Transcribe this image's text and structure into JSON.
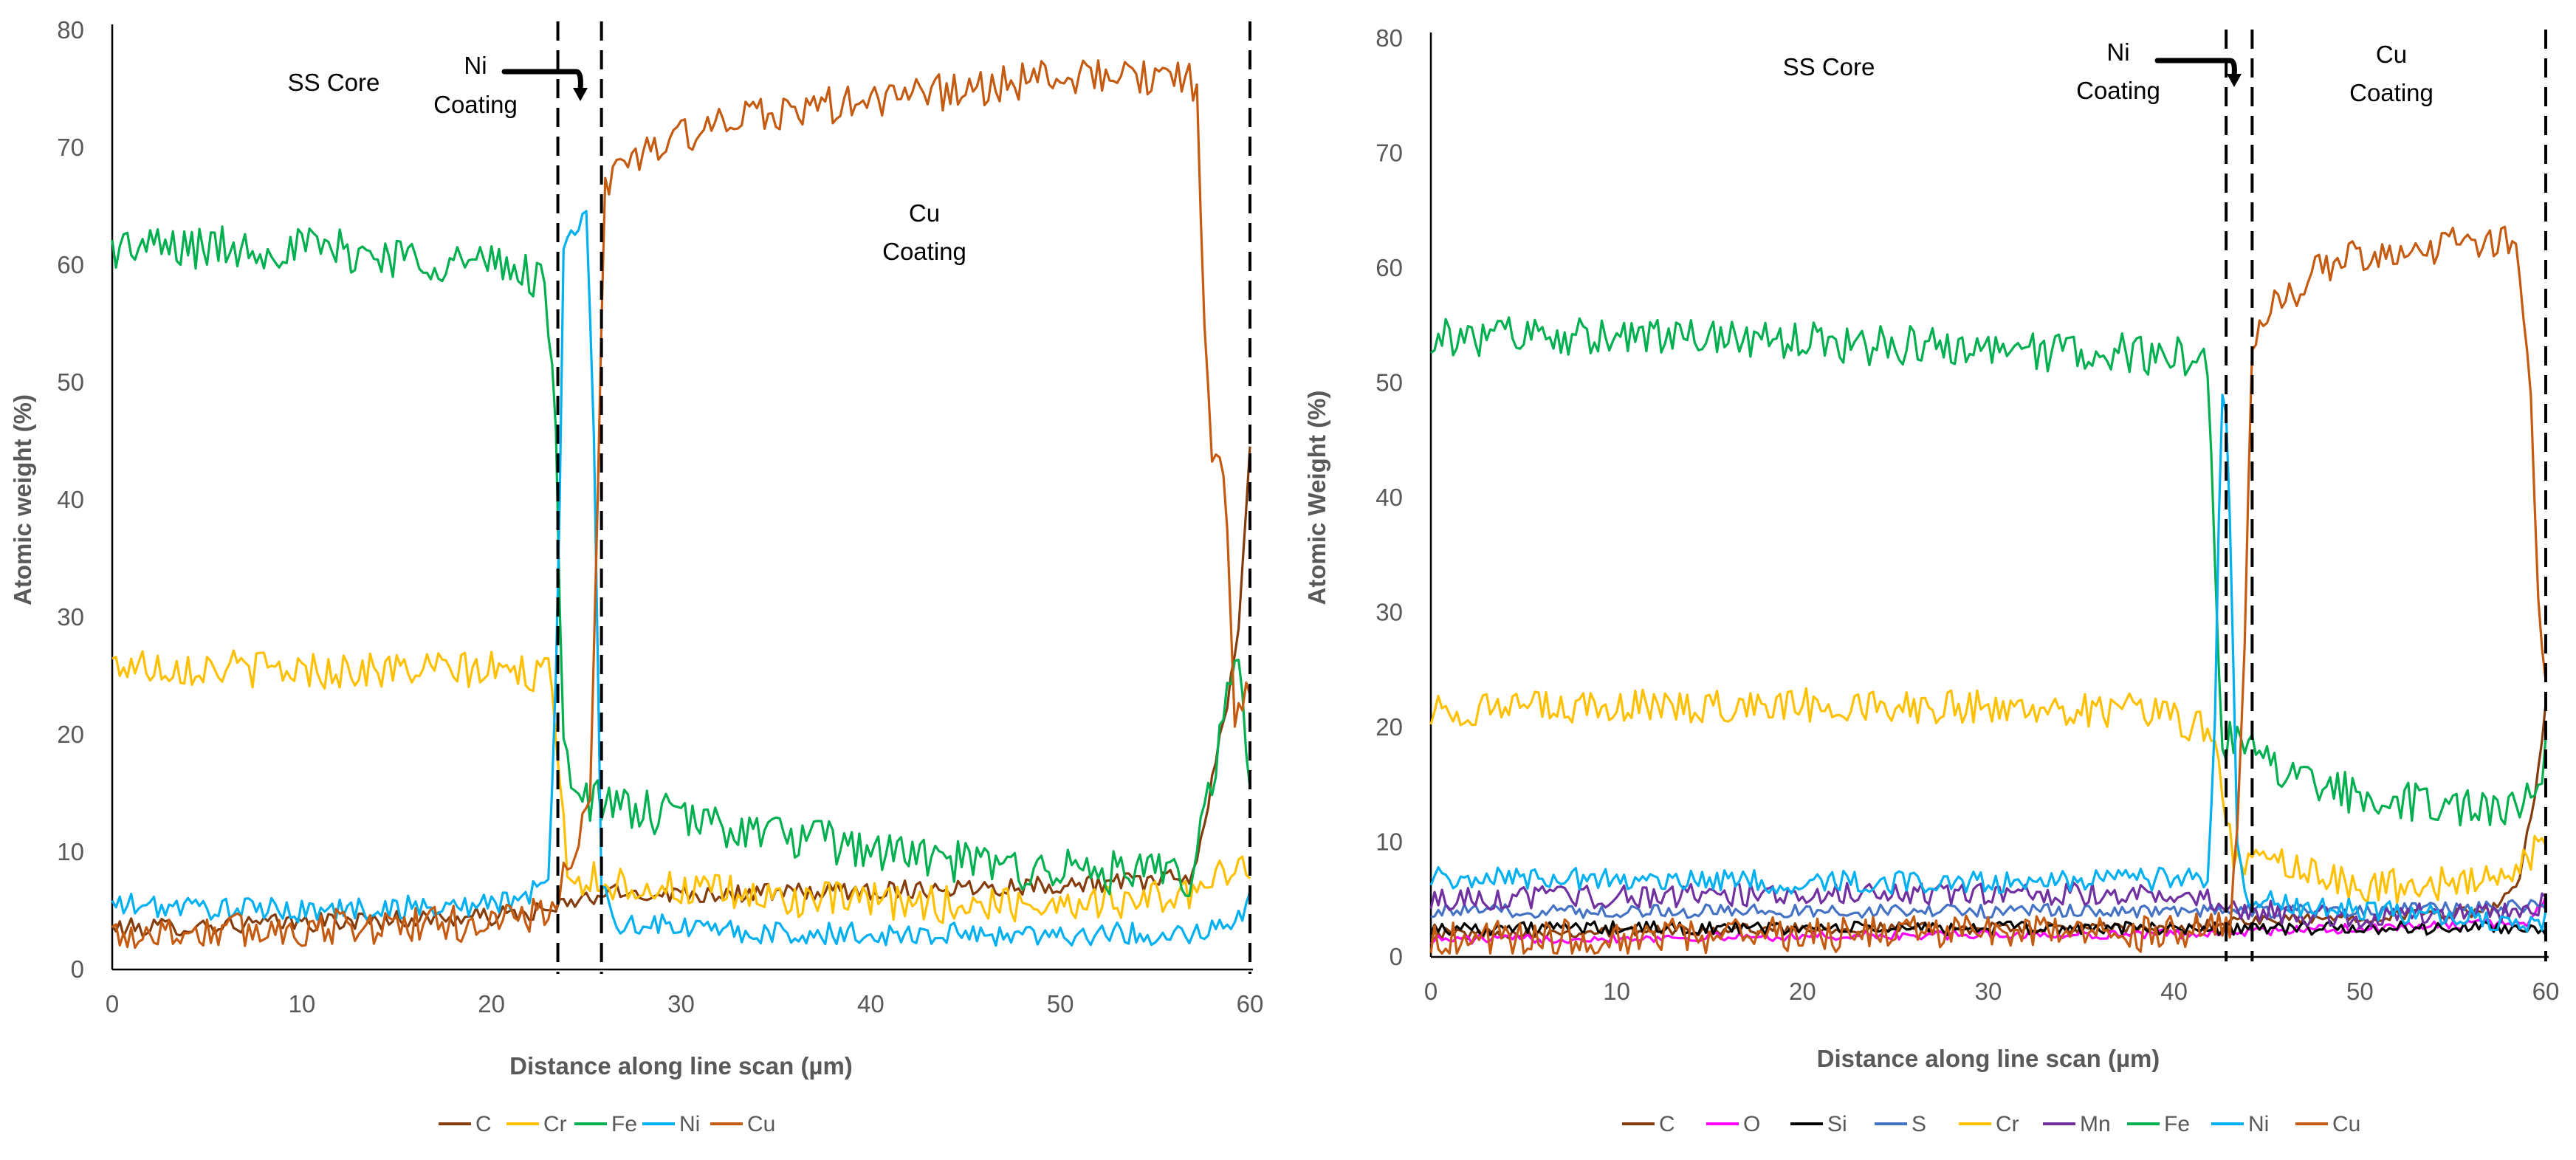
{
  "chart_data": [
    {
      "type": "line",
      "xlabel": "Distance along line scan (µm)",
      "ylabel": "Atomic weight (%)",
      "xlim": [
        0,
        60
      ],
      "ylim": [
        0,
        80
      ],
      "xticks": [
        "0",
        "10",
        "20",
        "30",
        "40",
        "50",
        "60"
      ],
      "yticks": [
        "0",
        "10",
        "20",
        "30",
        "40",
        "50",
        "60",
        "70",
        "80"
      ],
      "boundaries": [
        23.5,
        25.8,
        60
      ],
      "annotations": {
        "ss_core": "SS Core",
        "ni_coating_1": "Ni",
        "ni_coating_2": "Coating",
        "cu_coating_1": "Cu",
        "cu_coating_2": "Coating"
      },
      "series": [
        {
          "name": "C",
          "color": "#843c0c",
          "noise": 0.8,
          "points": [
            [
              0,
              3.5
            ],
            [
              10,
              4
            ],
            [
              20,
              4.5
            ],
            [
              23,
              5
            ],
            [
              25,
              6
            ],
            [
              26,
              6.5
            ],
            [
              35,
              6.5
            ],
            [
              45,
              7
            ],
            [
              55,
              7.5
            ],
            [
              57,
              8
            ],
            [
              58.5,
              20
            ],
            [
              59.3,
              27
            ],
            [
              60,
              45
            ]
          ]
        },
        {
          "name": "Cr",
          "color": "#ffc000",
          "noise": 1.6,
          "points": [
            [
              0,
              26
            ],
            [
              10,
              25.5
            ],
            [
              20,
              25.5
            ],
            [
              23,
              25
            ],
            [
              23.5,
              20
            ],
            [
              24,
              8
            ],
            [
              25.8,
              7.5
            ],
            [
              35,
              6
            ],
            [
              45,
              5.5
            ],
            [
              55,
              6
            ],
            [
              58,
              7
            ],
            [
              59.5,
              10
            ],
            [
              60,
              8
            ]
          ]
        },
        {
          "name": "Fe",
          "color": "#00b050",
          "noise": 1.9,
          "points": [
            [
              0,
              61.5
            ],
            [
              10,
              61.5
            ],
            [
              20,
              60
            ],
            [
              22.8,
              59
            ],
            [
              23.4,
              45
            ],
            [
              23.8,
              20
            ],
            [
              24.5,
              15
            ],
            [
              26,
              14
            ],
            [
              35,
              11.5
            ],
            [
              45,
              9
            ],
            [
              55,
              8
            ],
            [
              57,
              8
            ],
            [
              58.5,
              20
            ],
            [
              59.3,
              28
            ],
            [
              60,
              15
            ]
          ]
        },
        {
          "name": "Ni",
          "color": "#00b0f0",
          "noise": 1.0,
          "points": [
            [
              0,
              5.5
            ],
            [
              10,
              5
            ],
            [
              20,
              5.5
            ],
            [
              23,
              7
            ],
            [
              23.5,
              30
            ],
            [
              23.8,
              62
            ],
            [
              24.6,
              63
            ],
            [
              25,
              65
            ],
            [
              25.4,
              45
            ],
            [
              25.8,
              8
            ],
            [
              26.5,
              4
            ],
            [
              35,
              3
            ],
            [
              45,
              3
            ],
            [
              55,
              3
            ],
            [
              59,
              3.5
            ],
            [
              60,
              6
            ]
          ]
        },
        {
          "name": "Cu",
          "color": "#c55a11",
          "noise": 1.6,
          "points": [
            [
              0,
              3
            ],
            [
              10,
              3.5
            ],
            [
              20,
              4
            ],
            [
              23,
              5
            ],
            [
              24.5,
              10
            ],
            [
              25.2,
              14
            ],
            [
              25.6,
              40
            ],
            [
              26,
              67
            ],
            [
              27,
              69
            ],
            [
              30,
              71
            ],
            [
              35,
              73
            ],
            [
              40,
              74
            ],
            [
              45,
              75
            ],
            [
              50,
              76
            ],
            [
              55,
              76
            ],
            [
              56.7,
              76
            ],
            [
              57.2,
              74
            ],
            [
              57.6,
              55
            ],
            [
              58,
              43
            ],
            [
              58.7,
              42
            ],
            [
              59.2,
              20
            ],
            [
              60,
              25
            ]
          ]
        }
      ]
    },
    {
      "type": "line",
      "xlabel": "Distance along line scan (µm)",
      "ylabel": "Atomic Weight (%)",
      "xlim": [
        0,
        60
      ],
      "ylim": [
        0,
        80
      ],
      "xticks": [
        "0",
        "10",
        "20",
        "30",
        "40",
        "50",
        "60"
      ],
      "yticks": [
        "0",
        "10",
        "20",
        "30",
        "40",
        "50",
        "60",
        "70",
        "80"
      ],
      "boundaries": [
        42.8,
        44.2,
        60
      ],
      "annotations": {
        "ss_core": "SS Core",
        "ni_coating_1": "Ni",
        "ni_coating_2": "Coating",
        "cu_coating_1": "Cu",
        "cu_coating_2": "Coating"
      },
      "series": [
        {
          "name": "C",
          "color": "#843c0c",
          "noise": 0.5,
          "points": [
            [
              0,
              2
            ],
            [
              20,
              2.5
            ],
            [
              40,
              2.5
            ],
            [
              43,
              3
            ],
            [
              50,
              3.5
            ],
            [
              57,
              4
            ],
            [
              58.5,
              6
            ],
            [
              59.5,
              15
            ],
            [
              60,
              22
            ]
          ]
        },
        {
          "name": "O",
          "color": "#ff00ff",
          "noise": 0.4,
          "points": [
            [
              0,
              1.5
            ],
            [
              20,
              1.8
            ],
            [
              40,
              2
            ],
            [
              50,
              2.5
            ],
            [
              59,
              3
            ],
            [
              60,
              5
            ]
          ]
        },
        {
          "name": "Si",
          "color": "#000000",
          "noise": 0.6,
          "points": [
            [
              0,
              2.5
            ],
            [
              20,
              2.5
            ],
            [
              40,
              2.5
            ],
            [
              50,
              2.5
            ],
            [
              60,
              2.5
            ]
          ]
        },
        {
          "name": "S",
          "color": "#4472c4",
          "noise": 0.6,
          "points": [
            [
              0,
              4
            ],
            [
              20,
              4
            ],
            [
              40,
              4
            ],
            [
              50,
              4
            ],
            [
              60,
              4.5
            ]
          ]
        },
        {
          "name": "Cr",
          "color": "#ffc000",
          "noise": 1.5,
          "points": [
            [
              0,
              21.5
            ],
            [
              20,
              22
            ],
            [
              38,
              21.5
            ],
            [
              41.5,
              20
            ],
            [
              42.3,
              18
            ],
            [
              42.8,
              12
            ],
            [
              43.3,
              8
            ],
            [
              44.2,
              9
            ],
            [
              50,
              6
            ],
            [
              55,
              6.5
            ],
            [
              58,
              7
            ],
            [
              60,
              10
            ]
          ]
        },
        {
          "name": "Mn",
          "color": "#7030a0",
          "noise": 1.0,
          "points": [
            [
              0,
              5
            ],
            [
              20,
              5.5
            ],
            [
              40,
              5.5
            ],
            [
              42,
              5
            ],
            [
              44,
              4
            ],
            [
              50,
              3.5
            ],
            [
              59,
              4
            ],
            [
              60,
              5
            ]
          ]
        },
        {
          "name": "Fe",
          "color": "#00b050",
          "noise": 1.8,
          "points": [
            [
              0,
              54
            ],
            [
              10,
              54
            ],
            [
              20,
              53.5
            ],
            [
              30,
              53
            ],
            [
              38,
              52.5
            ],
            [
              41.8,
              52
            ],
            [
              42.3,
              30
            ],
            [
              42.6,
              19
            ],
            [
              44,
              18
            ],
            [
              46,
              16
            ],
            [
              50,
              14
            ],
            [
              55,
              13
            ],
            [
              58,
              12.5
            ],
            [
              59.3,
              14
            ],
            [
              60,
              18
            ]
          ]
        },
        {
          "name": "Ni",
          "color": "#00b0f0",
          "noise": 1.0,
          "points": [
            [
              0,
              7
            ],
            [
              20,
              6.5
            ],
            [
              35,
              6.5
            ],
            [
              41.8,
              7
            ],
            [
              42.2,
              20
            ],
            [
              42.5,
              48
            ],
            [
              42.7,
              51
            ],
            [
              43,
              38
            ],
            [
              43.4,
              10
            ],
            [
              44,
              5
            ],
            [
              50,
              4
            ],
            [
              55,
              3.5
            ],
            [
              60,
              3
            ]
          ]
        },
        {
          "name": "Cu",
          "color": "#c55a11",
          "noise": 1.6,
          "points": [
            [
              0,
              1.5
            ],
            [
              20,
              2
            ],
            [
              40,
              2
            ],
            [
              43,
              3
            ],
            [
              43.7,
              20
            ],
            [
              44.2,
              53
            ],
            [
              45,
              56
            ],
            [
              48,
              60
            ],
            [
              50,
              61
            ],
            [
              55,
              62
            ],
            [
              58.5,
              62
            ],
            [
              59.1,
              52
            ],
            [
              59.6,
              30
            ],
            [
              60,
              25
            ]
          ]
        }
      ]
    }
  ]
}
